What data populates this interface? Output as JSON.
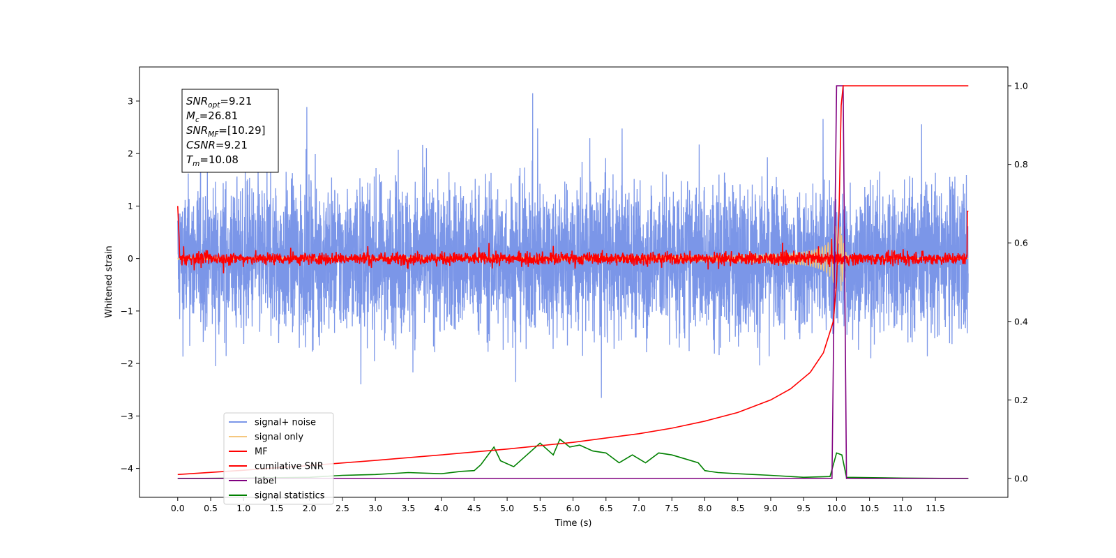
{
  "chart_data": {
    "type": "line",
    "xlabel": "Time (s)",
    "ylabel": "Whitened strain",
    "xlim": [
      -0.58,
      12.6
    ],
    "ylim": [
      -4.55,
      3.65
    ],
    "y2lim": [
      -0.048,
      1.048
    ],
    "xticks": [
      "0.0",
      "0.5",
      "1.0",
      "1.5",
      "2.0",
      "2.5",
      "3.0",
      "3.5",
      "4.0",
      "4.5",
      "5.0",
      "5.5",
      "6.0",
      "6.5",
      "7.0",
      "7.5",
      "8.0",
      "8.5",
      "9.0",
      "9.5",
      "10.0",
      "10.5",
      "11.0",
      "11.5"
    ],
    "yticks": [
      "3",
      "2",
      "1",
      "0",
      "−1",
      "−2",
      "−3",
      "−4"
    ],
    "y2ticks": [
      "1.0",
      "0.8",
      "0.6",
      "0.4",
      "0.2",
      "0.0"
    ],
    "annotation": [
      {
        "name": "SNR",
        "sub": "opt",
        "value": "=9.21"
      },
      {
        "name": "M",
        "sub": "c",
        "value": "=26.81"
      },
      {
        "name": "SNR",
        "sub": "MF",
        "value": "=[10.29]"
      },
      {
        "name": "CSNR",
        "sub": "",
        "value": "=9.21"
      },
      {
        "name": "T",
        "sub": "m",
        "value": "=10.08"
      }
    ],
    "legend_position": "lower left",
    "colors": {
      "signal_noise": "#7b96e8",
      "signal_only": "#f5c77e",
      "mf": "#ff0000",
      "csnr": "#ff0000",
      "label": "#800080",
      "stats": "#008000"
    },
    "series": [
      {
        "name": "signal+ noise",
        "axis": "left",
        "style": "noise band: approx. ±1.5 typical, extremes to ±3.1, t = 0.0 to 12.0"
      },
      {
        "name": "signal only",
        "axis": "left",
        "style": "chirp growing to ~±0.6 near merger at t ≈ 10.08"
      },
      {
        "name": "MF",
        "axis": "left",
        "style": "noise around 0 with amplitude ~0.15, spike to 1.0 at t = 0 and 0.9 at t = 12"
      },
      {
        "name": "cumilative SNR",
        "axis": "right",
        "points": [
          [
            0.0,
            0.01
          ],
          [
            1.0,
            0.021
          ],
          [
            2.0,
            0.033
          ],
          [
            3.0,
            0.046
          ],
          [
            4.0,
            0.06
          ],
          [
            5.0,
            0.075
          ],
          [
            6.0,
            0.092
          ],
          [
            7.0,
            0.114
          ],
          [
            7.5,
            0.128
          ],
          [
            8.0,
            0.146
          ],
          [
            8.5,
            0.168
          ],
          [
            9.0,
            0.2
          ],
          [
            9.3,
            0.228
          ],
          [
            9.6,
            0.27
          ],
          [
            9.8,
            0.32
          ],
          [
            9.95,
            0.4
          ],
          [
            10.0,
            0.5
          ],
          [
            10.04,
            0.7
          ],
          [
            10.07,
            0.95
          ],
          [
            10.1,
            1.0
          ],
          [
            12.0,
            1.0
          ]
        ]
      },
      {
        "name": "label",
        "axis": "right",
        "points": [
          [
            0.0,
            0.0
          ],
          [
            9.93,
            0.0
          ],
          [
            10.0,
            1.0
          ],
          [
            10.1,
            1.0
          ],
          [
            10.15,
            0.0
          ],
          [
            12.0,
            0.0
          ]
        ]
      },
      {
        "name": "signal statistics",
        "axis": "right",
        "points": [
          [
            0.0,
            0.0
          ],
          [
            1.0,
            0.001
          ],
          [
            2.0,
            0.003
          ],
          [
            2.5,
            0.008
          ],
          [
            3.0,
            0.01
          ],
          [
            3.5,
            0.015
          ],
          [
            4.0,
            0.012
          ],
          [
            4.3,
            0.018
          ],
          [
            4.5,
            0.02
          ],
          [
            4.6,
            0.035
          ],
          [
            4.8,
            0.08
          ],
          [
            4.9,
            0.045
          ],
          [
            5.1,
            0.03
          ],
          [
            5.3,
            0.06
          ],
          [
            5.5,
            0.09
          ],
          [
            5.7,
            0.06
          ],
          [
            5.8,
            0.1
          ],
          [
            5.95,
            0.08
          ],
          [
            6.1,
            0.085
          ],
          [
            6.3,
            0.07
          ],
          [
            6.5,
            0.065
          ],
          [
            6.7,
            0.04
          ],
          [
            6.9,
            0.06
          ],
          [
            7.1,
            0.04
          ],
          [
            7.3,
            0.065
          ],
          [
            7.5,
            0.06
          ],
          [
            7.7,
            0.05
          ],
          [
            7.9,
            0.04
          ],
          [
            8.0,
            0.02
          ],
          [
            8.2,
            0.015
          ],
          [
            8.5,
            0.012
          ],
          [
            9.0,
            0.008
          ],
          [
            9.5,
            0.003
          ],
          [
            9.9,
            0.005
          ],
          [
            10.0,
            0.065
          ],
          [
            10.08,
            0.06
          ],
          [
            10.15,
            0.003
          ],
          [
            11.0,
            0.001
          ],
          [
            12.0,
            0.0
          ]
        ]
      }
    ]
  }
}
